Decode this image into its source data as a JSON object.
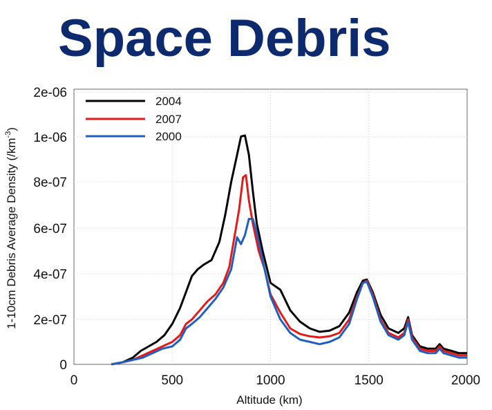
{
  "chart_data": {
    "type": "line",
    "title": "Space Debris",
    "xlabel": "Altitude (km)",
    "ylabel_main": "1-10cm Debris Average Density (/km",
    "ylabel_sup": "-3",
    "ylabel_end": ")",
    "xlim": [
      0,
      2000
    ],
    "ylim": [
      0,
      2e-06
    ],
    "xticks": [
      0,
      500,
      1000,
      1500,
      2000
    ],
    "xtick_labels": [
      "0",
      "500",
      "1000",
      "1500",
      "2000"
    ],
    "yticks": [
      0,
      2e-07,
      4e-07,
      6e-07,
      8e-07,
      1e-06,
      2e-06
    ],
    "ytick_labels": [
      "0",
      "2e-07",
      "4e-07",
      "6e-07",
      "8e-07",
      "1e-06",
      "2e-06"
    ],
    "grid": true,
    "legend_position": "top-left",
    "series": [
      {
        "name": "2004",
        "color": "#000000",
        "x": [
          190,
          250,
          300,
          340,
          380,
          420,
          460,
          500,
          540,
          570,
          600,
          630,
          660,
          700,
          740,
          770,
          800,
          830,
          850,
          870,
          890,
          910,
          930,
          960,
          1000,
          1050,
          1100,
          1150,
          1200,
          1250,
          1300,
          1350,
          1400,
          1440,
          1470,
          1490,
          1520,
          1560,
          1600,
          1650,
          1680,
          1700,
          1720,
          1760,
          1800,
          1840,
          1860,
          1880,
          1920,
          1960,
          2000
        ],
        "y": [
          0,
          1e-08,
          3e-08,
          6e-08,
          8e-08,
          1e-07,
          1.3e-07,
          1.8e-07,
          2.5e-07,
          3.2e-07,
          3.9e-07,
          4.2e-07,
          4.4e-07,
          4.6e-07,
          5.4e-07,
          6.6e-07,
          8e-07,
          9.2e-07,
          1.01e-06,
          1.03e-06,
          9.2e-07,
          7.6e-07,
          6.2e-07,
          5e-07,
          3.6e-07,
          3.3e-07,
          2.4e-07,
          1.9e-07,
          1.6e-07,
          1.45e-07,
          1.5e-07,
          1.7e-07,
          2.3e-07,
          3.2e-07,
          3.7e-07,
          3.75e-07,
          3.2e-07,
          2.2e-07,
          1.6e-07,
          1.4e-07,
          1.6e-07,
          2.1e-07,
          1.3e-07,
          8e-08,
          7e-08,
          7e-08,
          9e-08,
          7e-08,
          6e-08,
          5e-08,
          5e-08
        ]
      },
      {
        "name": "2007",
        "color": "#e41a1a",
        "x": [
          190,
          250,
          300,
          350,
          400,
          450,
          500,
          540,
          570,
          600,
          640,
          680,
          720,
          760,
          790,
          820,
          840,
          860,
          875,
          890,
          910,
          940,
          970,
          1000,
          1050,
          1100,
          1150,
          1200,
          1250,
          1300,
          1350,
          1400,
          1440,
          1470,
          1490,
          1520,
          1560,
          1600,
          1650,
          1680,
          1700,
          1720,
          1760,
          1800,
          1840,
          1860,
          1880,
          1920,
          1960,
          2000
        ],
        "y": [
          0,
          1e-08,
          2e-08,
          4e-08,
          6e-08,
          8e-08,
          1e-07,
          1.3e-07,
          1.8e-07,
          2e-07,
          2.4e-07,
          2.8e-07,
          3.1e-07,
          3.6e-07,
          4.3e-07,
          5.8e-07,
          6.8e-07,
          8.2e-07,
          8.3e-07,
          7.2e-07,
          6.2e-07,
          5e-07,
          4.2e-07,
          3.1e-07,
          2.3e-07,
          1.6e-07,
          1.35e-07,
          1.25e-07,
          1.2e-07,
          1.25e-07,
          1.4e-07,
          2e-07,
          3e-07,
          3.6e-07,
          3.7e-07,
          3.1e-07,
          2e-07,
          1.4e-07,
          1.2e-07,
          1.4e-07,
          2e-07,
          1.2e-07,
          7e-08,
          6e-08,
          6e-08,
          8e-08,
          6e-08,
          5e-08,
          4e-08,
          4e-08
        ]
      },
      {
        "name": "2000",
        "color": "#1f5fbf",
        "x": [
          190,
          250,
          300,
          350,
          400,
          450,
          500,
          540,
          570,
          600,
          640,
          680,
          720,
          760,
          800,
          830,
          850,
          870,
          890,
          910,
          930,
          960,
          1000,
          1050,
          1100,
          1150,
          1200,
          1250,
          1300,
          1350,
          1400,
          1440,
          1470,
          1490,
          1520,
          1560,
          1600,
          1650,
          1680,
          1700,
          1720,
          1760,
          1800,
          1840,
          1860,
          1880,
          1920,
          1960,
          2000
        ],
        "y": [
          0,
          1e-08,
          2e-08,
          3e-08,
          5e-08,
          7e-08,
          8e-08,
          1.1e-07,
          1.6e-07,
          1.8e-07,
          2.1e-07,
          2.5e-07,
          2.9e-07,
          3.4e-07,
          4.2e-07,
          5.6e-07,
          5.3e-07,
          5.7e-07,
          6.4e-07,
          6.4e-07,
          5.8e-07,
          4.6e-07,
          3e-07,
          2e-07,
          1.4e-07,
          1.1e-07,
          1e-07,
          9e-08,
          1e-07,
          1.2e-07,
          1.8e-07,
          2.9e-07,
          3.6e-07,
          3.65e-07,
          3e-07,
          1.9e-07,
          1.3e-07,
          1.1e-07,
          1.3e-07,
          1.9e-07,
          1.1e-07,
          6e-08,
          5e-08,
          5e-08,
          7e-08,
          5e-08,
          4e-08,
          3e-08,
          3e-08
        ]
      }
    ]
  }
}
